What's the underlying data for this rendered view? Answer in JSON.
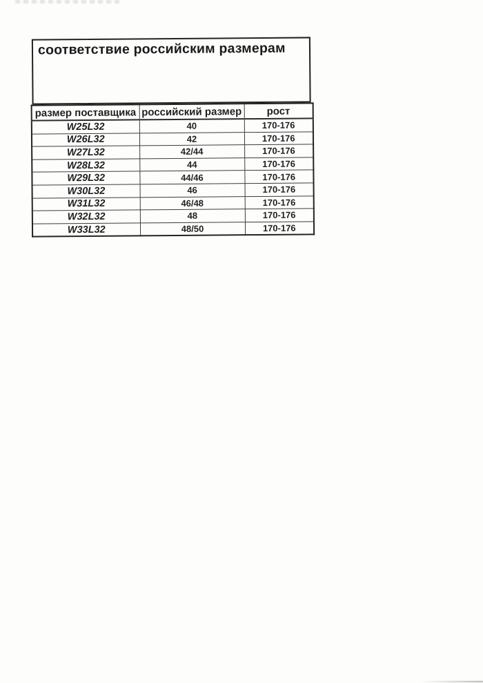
{
  "document": {
    "title": "соответствие российским размерам"
  },
  "table": {
    "headers": [
      "размер поставщика",
      "российский размер",
      "рост"
    ],
    "rows": [
      [
        "W25L32",
        "40",
        "170-176"
      ],
      [
        "W26L32",
        "42",
        "170-176"
      ],
      [
        "W27L32",
        "42/44",
        "170-176"
      ],
      [
        "W28L32",
        "44",
        "170-176"
      ],
      [
        "W29L32",
        "44/46",
        "170-176"
      ],
      [
        "W30L32",
        "46",
        "170-176"
      ],
      [
        "W31L32",
        "46/48",
        "170-176"
      ],
      [
        "W32L32",
        "48",
        "170-176"
      ],
      [
        "W33L32",
        "48/50",
        "170-176"
      ]
    ]
  },
  "colors": {
    "paper": "#fdfdfc",
    "ink": "#1f1f1f",
    "border_outer": "#232323",
    "border_inner": "#3a3a3a"
  }
}
